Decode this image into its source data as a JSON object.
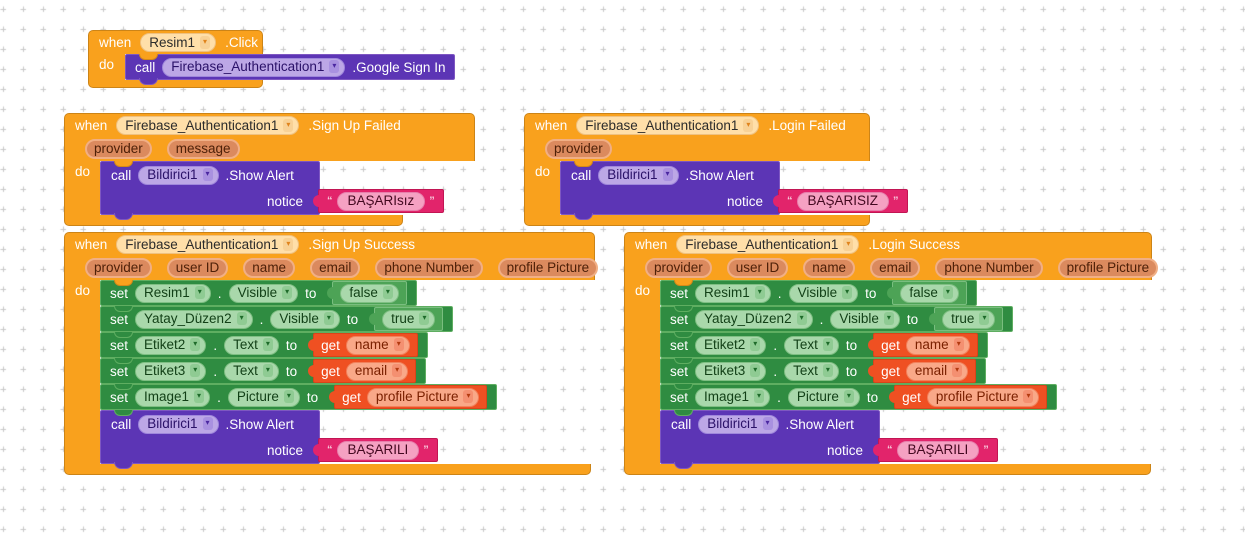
{
  "colors": {
    "workspace_bg": "#ffffff",
    "grid_plus": "#c9c9c9",
    "event_orange": "#F9A11D",
    "procedure_purple": "#5C35B5",
    "setter_green": "#2F8C41",
    "logic_green": "#4DA356",
    "getter_orange_red": "#EF5022",
    "string_pink": "#E2246B",
    "param_chip": "#DB8A5E"
  },
  "labels": {
    "when": "when",
    "do": "do",
    "call": "call",
    "set": "set",
    "to": "to",
    "get": "get",
    "dot": ".",
    "notice": "notice",
    "open_quote": "“",
    "close_quote": "”",
    "dropdown_arrow": "▾"
  },
  "blocks": {
    "image_click": {
      "component": "Resim1",
      "event": ".Click",
      "call": {
        "component": "Firebase_Authentication1",
        "method": ".Google Sign In"
      }
    },
    "signup_failed": {
      "component": "Firebase_Authentication1",
      "event": ".Sign Up Failed",
      "params": [
        "provider",
        "message"
      ],
      "call": {
        "component": "Bildirici1",
        "method": ".Show Alert",
        "arg": "notice",
        "text": "BAŞARIsız"
      }
    },
    "login_failed": {
      "component": "Firebase_Authentication1",
      "event": ".Login Failed",
      "params": [
        "provider"
      ],
      "call": {
        "component": "Bildirici1",
        "method": ".Show Alert",
        "arg": "notice",
        "text": "BAŞARISIZ"
      }
    },
    "signup_success": {
      "component": "Firebase_Authentication1",
      "event": ".Sign Up Success",
      "params": [
        "provider",
        "user ID",
        "name",
        "email",
        "phone Number",
        "profile Picture"
      ],
      "sets": [
        {
          "component": "Resim1",
          "property": "Visible",
          "value_kind": "logic",
          "value": "false"
        },
        {
          "component": "Yatay_Düzen2",
          "property": "Visible",
          "value_kind": "logic",
          "value": "true"
        },
        {
          "component": "Etiket2",
          "property": "Text",
          "value_kind": "get",
          "value": "name"
        },
        {
          "component": "Etiket3",
          "property": "Text",
          "value_kind": "get",
          "value": "email"
        },
        {
          "component": "Image1",
          "property": "Picture",
          "value_kind": "get",
          "value": "profile Picture"
        }
      ],
      "call": {
        "component": "Bildirici1",
        "method": ".Show Alert",
        "arg": "notice",
        "text": "BAŞARILI"
      }
    },
    "login_success": {
      "component": "Firebase_Authentication1",
      "event": ".Login Success",
      "params": [
        "provider",
        "user ID",
        "name",
        "email",
        "phone Number",
        "profile Picture"
      ],
      "sets": [
        {
          "component": "Resim1",
          "property": "Visible",
          "value_kind": "logic",
          "value": "false"
        },
        {
          "component": "Yatay_Düzen2",
          "property": "Visible",
          "value_kind": "logic",
          "value": "true"
        },
        {
          "component": "Etiket2",
          "property": "Text",
          "value_kind": "get",
          "value": "name"
        },
        {
          "component": "Etiket3",
          "property": "Text",
          "value_kind": "get",
          "value": "email"
        },
        {
          "component": "Image1",
          "property": "Picture",
          "value_kind": "get",
          "value": "profile Picture"
        }
      ],
      "call": {
        "component": "Bildirici1",
        "method": ".Show Alert",
        "arg": "notice",
        "text": "BAŞARILI"
      }
    }
  }
}
